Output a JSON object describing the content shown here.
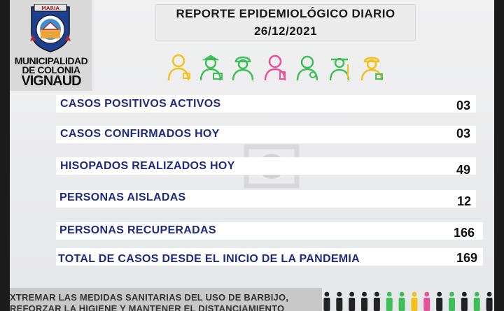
{
  "logo": {
    "seal_text": "MARIA",
    "line1": "MUNICIPALIDAD",
    "line2": "DE COLONIA",
    "line3": "VIGNAUD"
  },
  "header": {
    "title": "REPORTE EPIDEMIOLÓGICO DIARIO",
    "date": "26/12/2021"
  },
  "workers": [
    "worker-yellow",
    "worker-green-medic",
    "worker-green-builder",
    "worker-pink",
    "worker-green-doctor",
    "worker-green-farmer",
    "worker-yellow-firefighter"
  ],
  "stats": [
    {
      "label": "CASOS POSITIVOS ACTIVOS",
      "value": "03"
    },
    {
      "label": "CASOS CONFIRMADOS HOY",
      "value": "03"
    },
    {
      "label": "HISOPADOS REALIZADOS HOY",
      "value": "49"
    },
    {
      "label": "PERSONAS AISLADAS",
      "value": "12"
    },
    {
      "label": "PERSONAS RECUPERADAS",
      "value": "166"
    },
    {
      "label": "TOTAL DE CASOS DESDE EL INICIO DE LA PANDEMIA",
      "value": "169"
    }
  ],
  "footer": {
    "line1": "XTREMAR LAS MEDIDAS SANITARIAS DEL USO DE BARBIJO,",
    "line2": "REFORZAR LA HIGIENE Y MANTENER EL DISTANCIAMIENTO"
  },
  "colors": {
    "label_blue": "#1f2a80",
    "worker_yellow": "#f2c21a",
    "worker_green": "#3fbf5a",
    "worker_pink": "#e9519a"
  }
}
